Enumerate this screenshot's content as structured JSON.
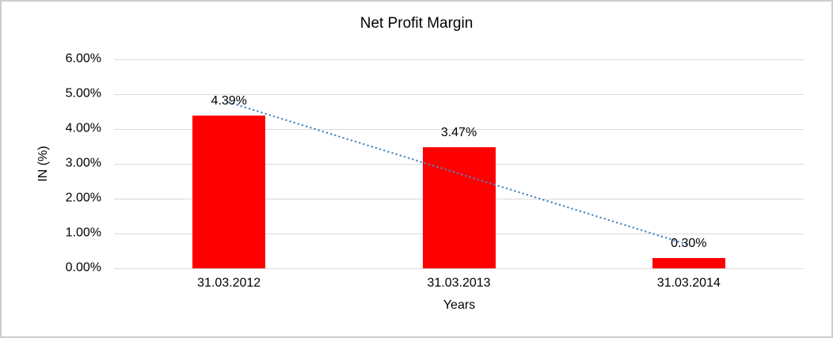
{
  "chart_data": {
    "type": "bar",
    "title": "Net Profit Margin",
    "categories": [
      "31.03.2012",
      "31.03.2013",
      "31.03.2014"
    ],
    "values": [
      4.39,
      3.47,
      0.3
    ],
    "data_labels": [
      "4.39%",
      "3.47%",
      "0.30%"
    ],
    "xlabel": "Years",
    "ylabel": "IN (%)",
    "ylim": [
      0,
      6
    ],
    "ytick_step": 1,
    "ytick_labels": [
      "0.00%",
      "1.00%",
      "2.00%",
      "3.00%",
      "4.00%",
      "5.00%",
      "6.00%"
    ],
    "grid": true,
    "legend_position": "none",
    "bar_color": "#ff0000",
    "gridline_color": "#d9d9d9",
    "text_color": "#000000",
    "trendline": {
      "kind": "linear",
      "style": "dotted",
      "color": "#4e86c4",
      "endpoints_pct": [
        4.77,
        0.68
      ]
    }
  }
}
